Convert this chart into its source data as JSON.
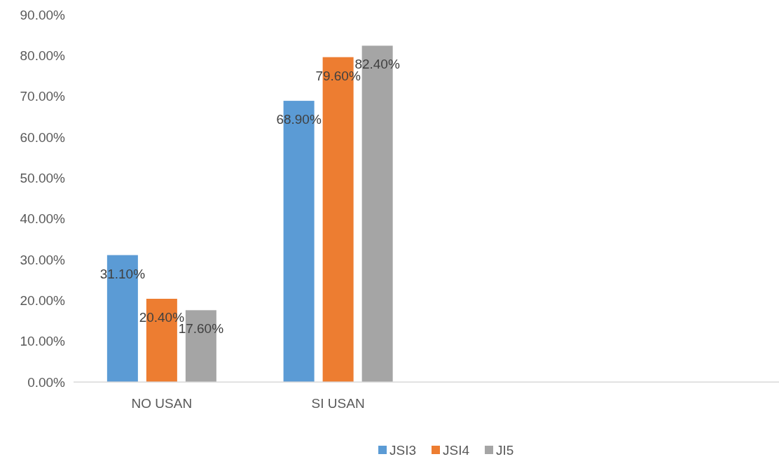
{
  "chart_data": {
    "type": "bar",
    "categories": [
      "NO USAN",
      "SI USAN",
      null,
      null
    ],
    "series": [
      {
        "name": "JSI3",
        "color": "#5b9bd5",
        "values": [
          31.1,
          68.9,
          null,
          null
        ],
        "value_labels": [
          "31.10%",
          "68.90%",
          null,
          null
        ]
      },
      {
        "name": "JSI4",
        "color": "#ed7d31",
        "values": [
          20.4,
          79.6,
          null,
          null
        ],
        "value_labels": [
          "20.40%",
          "79.60%",
          null,
          null
        ]
      },
      {
        "name": "JI5",
        "color": "#a5a5a5",
        "values": [
          17.6,
          82.4,
          null,
          null
        ],
        "value_labels": [
          "17.60%",
          "82.40%",
          null,
          null
        ]
      }
    ],
    "ylim": [
      0,
      90
    ],
    "yticks": [
      {
        "value": 0,
        "label": "0.00%"
      },
      {
        "value": 10,
        "label": "10.00%"
      },
      {
        "value": 20,
        "label": "20.00%"
      },
      {
        "value": 30,
        "label": "30.00%"
      },
      {
        "value": 40,
        "label": "40.00%"
      },
      {
        "value": 50,
        "label": "50.00%"
      },
      {
        "value": 60,
        "label": "60.00%"
      },
      {
        "value": 70,
        "label": "70.00%"
      },
      {
        "value": 80,
        "label": "80.00%"
      },
      {
        "value": 90,
        "label": "90.00%"
      }
    ],
    "grid": false,
    "legend": "bottom"
  }
}
